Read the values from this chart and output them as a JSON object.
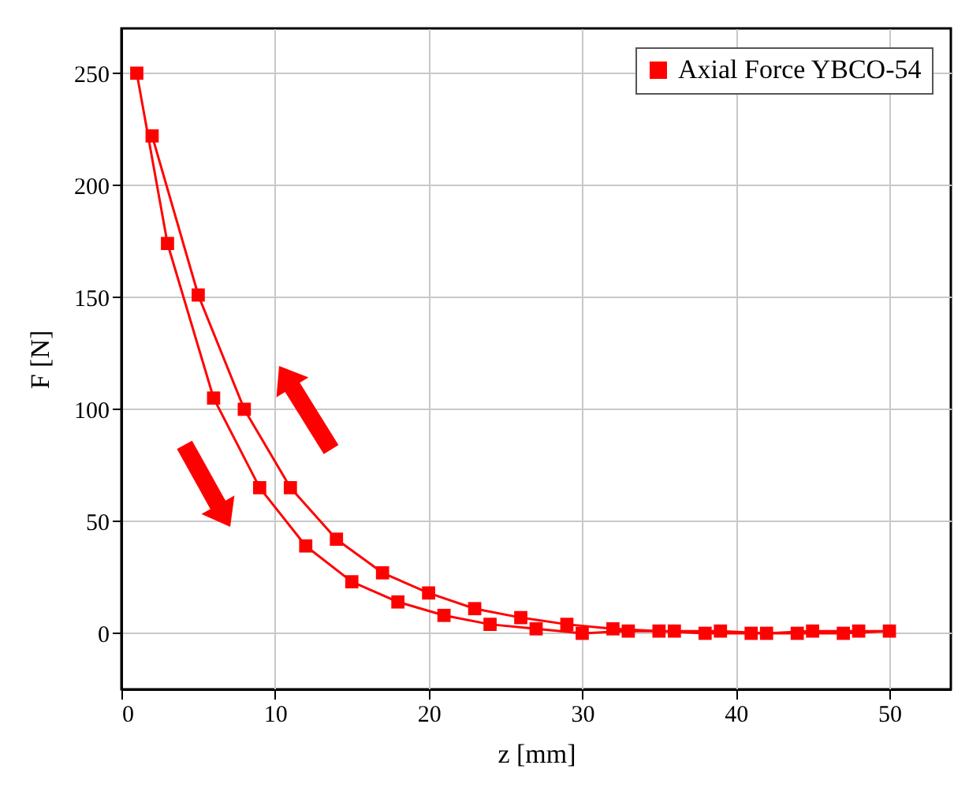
{
  "chart_data": {
    "type": "line",
    "xlabel": "z [mm]",
    "ylabel": "F [N]",
    "x": [
      1,
      3,
      6,
      9,
      12,
      15,
      18,
      21,
      24,
      27,
      30,
      33,
      36,
      39,
      42,
      45,
      48,
      50,
      47,
      44,
      41,
      38,
      35,
      32,
      29,
      26,
      23,
      20,
      17,
      14,
      11,
      8,
      5,
      2
    ],
    "series": [
      {
        "name": "Axial Force YBCO-54",
        "color": "#ff0000",
        "values": [
          250,
          174,
          105,
          65,
          39,
          23,
          14,
          8,
          4,
          2,
          0,
          1,
          1,
          1,
          0,
          1,
          1,
          1,
          0,
          0,
          0,
          0,
          1,
          2,
          4,
          7,
          11,
          18,
          27,
          42,
          65,
          100,
          151,
          222
        ]
      }
    ],
    "xlim": [
      0,
      54
    ],
    "ylim": [
      -25,
      270
    ],
    "xticks": [
      0,
      10,
      20,
      30,
      40,
      50
    ],
    "yticks": [
      0,
      50,
      100,
      150,
      200,
      250
    ],
    "grid": true,
    "legend": "top right",
    "marker": "square",
    "line_style": "solid"
  }
}
